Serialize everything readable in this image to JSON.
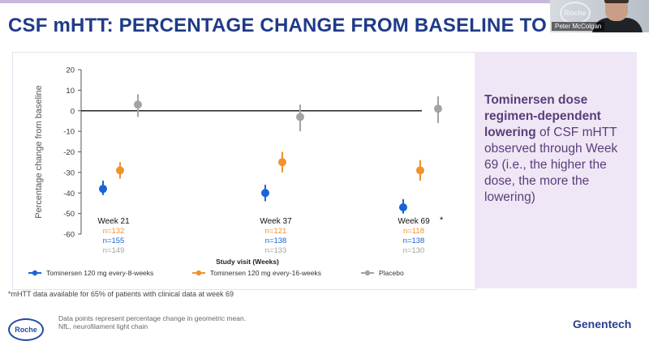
{
  "slide": {
    "title": "CSF mHTT: PERCENTAGE CHANGE FROM BASELINE TO WEE",
    "speaker_name": "Peter McColgan",
    "video_logo": "Roche",
    "sidebar_bold": "Tominersen dose regimen-dependent lowering",
    "sidebar_rest": " of CSF mHTT observed through Week 69 (i.e., the higher the dose, the more the lowering)",
    "footnote": "*mHTT data available for 65% of patients with clinical data at week 69",
    "notes": [
      "Data points represent percentage change in geometric mean.",
      "NfL, neurofilament light chain"
    ],
    "brand_left": "Roche",
    "brand_right": "Genentech",
    "colors": {
      "title": "#1f3a8a",
      "sidebar_text": "#5a3e7a",
      "sidebar_bg": "#efe7f5"
    }
  },
  "chart_data": {
    "type": "scatter",
    "ylabel": "Percentage change from baseline",
    "xlabel": "Study visit (Weeks)",
    "ylim": [
      -60,
      20
    ],
    "yticks": [
      20,
      10,
      0,
      -10,
      -20,
      -30,
      -40,
      -50,
      -60
    ],
    "visits": [
      {
        "label": "Week 21",
        "asterisk": "",
        "n": [
          "n=132",
          "n=155",
          "n=149"
        ]
      },
      {
        "label": "Week 37",
        "asterisk": "",
        "n": [
          "n=121",
          "n=138",
          "n=133"
        ]
      },
      {
        "label": "Week 69",
        "asterisk": "*",
        "n": [
          "n=118",
          "n=138",
          "n=130"
        ]
      }
    ],
    "series": [
      {
        "name": "Tominersen 120 mg every-8-weeks",
        "color": "#1a63d6",
        "values": [
          -38,
          -40,
          -47
        ],
        "lower": [
          -41,
          -44,
          -50
        ],
        "upper": [
          -34,
          -36,
          -43
        ]
      },
      {
        "name": "Tominersen 120 mg every-16-weeks",
        "color": "#f0922e",
        "values": [
          -29,
          -25,
          -29
        ],
        "lower": [
          -33,
          -30,
          -34
        ],
        "upper": [
          -25,
          -20,
          -24
        ]
      },
      {
        "name": "Placebo",
        "color": "#a3a3a3",
        "values": [
          3,
          -3,
          1
        ],
        "lower": [
          -3,
          -10,
          -6
        ],
        "upper": [
          8,
          3,
          7
        ]
      }
    ],
    "grid": false,
    "legend": "bottom"
  }
}
